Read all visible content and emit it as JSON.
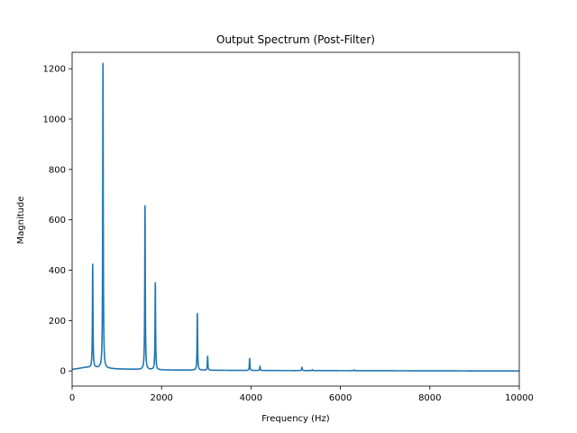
{
  "chart_data": {
    "type": "line",
    "title": "Output Spectrum (Post-Filter)",
    "xlabel": "Frequency (Hz)",
    "ylabel": "Magnitude",
    "xlim": [
      0,
      10000
    ],
    "ylim": [
      -60,
      1265
    ],
    "xticks": [
      0,
      2000,
      4000,
      6000,
      8000,
      10000
    ],
    "yticks": [
      0,
      200,
      400,
      600,
      800,
      1000,
      1200
    ],
    "grid": false,
    "legend": "none",
    "series": [
      {
        "color": "#1f77b4",
        "peaks": [
          {
            "x": 460,
            "y": 410
          },
          {
            "x": 690,
            "y": 1210
          },
          {
            "x": 1630,
            "y": 650
          },
          {
            "x": 1860,
            "y": 345
          },
          {
            "x": 2800,
            "y": 225
          },
          {
            "x": 3030,
            "y": 55
          },
          {
            "x": 3970,
            "y": 48
          },
          {
            "x": 4200,
            "y": 17
          },
          {
            "x": 5140,
            "y": 13
          },
          {
            "x": 5370,
            "y": 4
          },
          {
            "x": 6310,
            "y": 3
          }
        ],
        "baseline": [
          {
            "x": 0,
            "y": 6
          },
          {
            "x": 300,
            "y": 14
          },
          {
            "x": 1000,
            "y": 8
          },
          {
            "x": 2000,
            "y": 4
          },
          {
            "x": 4000,
            "y": 2
          },
          {
            "x": 10000,
            "y": 0
          }
        ]
      }
    ]
  }
}
